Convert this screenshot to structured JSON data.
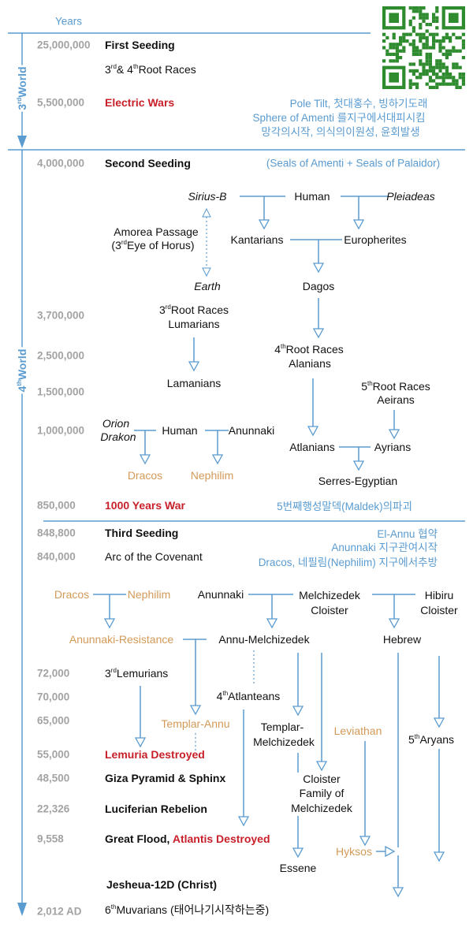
{
  "header": {
    "years_label": "Years"
  },
  "colors": {
    "line": "#5a9bd0",
    "year": "#a3a3a3",
    "red": "#c8202a",
    "orange": "#d39a57",
    "qr": "#2e8b2e"
  },
  "worlds": {
    "third": {
      "num": "3",
      "sup": "rd",
      "label": "World"
    },
    "fourth": {
      "num": "4",
      "sup": "th",
      "label": "World"
    }
  },
  "years": [
    "25,000,000",
    "5,500,000",
    "4,000,000",
    "3,700,000",
    "2,500,000",
    "1,500,000",
    "1,000,000",
    "850,000",
    "848,800",
    "840,000",
    "72,000",
    "70,000",
    "65,000",
    "55,000",
    "48,500",
    "22,326",
    "9,558",
    "2,012 AD"
  ],
  "events": {
    "first_seeding": "First Seeding",
    "root_races": {
      "a": "3",
      "a_sup": "rd",
      "b": "& 4",
      "b_sup": "th",
      "c": "Root Races"
    },
    "electric_wars": "Electric Wars",
    "second_seeding": "Second  Seeding",
    "thousand_years_war": "1000 Years War",
    "third_seeding": "Third Seeding",
    "arc": "Arc of the Covenant",
    "lemurians": {
      "n": "3",
      "sup": "rd",
      "t": "Lemurians"
    },
    "lemuria_destroyed": "Lemuria Destroyed",
    "giza": "Giza Pyramid & Sphinx",
    "luciferian": "Luciferian Rebelion",
    "great_flood": "Great Flood, ",
    "atlantis_destroyed": "Atlantis Destroyed",
    "jesheua": "Jesheua-12D (Christ)",
    "muvarians": {
      "n": "6",
      "sup": "th",
      "t": "Muvarians (태어나기시작하는중)"
    }
  },
  "notes": {
    "electric": [
      "Pole Tilt, 첫대홍수, 빙하기도래",
      "Sphere of Amenti 를지구에서대피시킴",
      "망각의시작, 의식의이원성, 윤회발생"
    ],
    "seals": "(Seals of Amenti + Seals of Palaidor)",
    "maldek": "5번째행성말덱(Maldek)의파괴",
    "third": [
      "El-Annu 협약",
      "Anunnaki 지구관여시작",
      "Dracos, 네필림(Nephilim) 지구에서추방"
    ]
  },
  "fourth_world_diagram": {
    "sirius": "Sirius-B",
    "human": "Human",
    "pleiadeas": "Pleiadeas",
    "kantarians": "Kantarians",
    "europherites": "Europherites",
    "dagos": "Dagos",
    "amorea": [
      "Amorea Passage",
      {
        "open": "(3",
        "sup": "rd",
        "close": "Eye of Horus)"
      }
    ],
    "earth": "Earth",
    "root3": {
      "n": "3",
      "sup": "rd",
      "t": "Root Races",
      "sub": "Lumarians"
    },
    "lamanians": "Lamanians",
    "root4": {
      "n": "4",
      "sup": "th",
      "t": "Root Races",
      "sub": "Alanians"
    },
    "root5": {
      "n": "5",
      "sup": "th",
      "t": "Root Races",
      "sub": "Aeirans"
    },
    "atlanians": "Atlanians",
    "ayrians": "Ayrians",
    "serres": "Serres-Egyptian",
    "orion": "Orion",
    "drakon": "Drakon",
    "human2": "Human",
    "anunnaki": "Anunnaki",
    "dracos": "Dracos",
    "nephilim": "Nephilim"
  },
  "third_seeding_diagram": {
    "dracos": "Dracos",
    "nephilim": "Nephilim",
    "anunnaki": "Anunnaki",
    "melchizedek_cloister": [
      "Melchizedek",
      "Cloister"
    ],
    "hibiru_cloister": [
      "Hibiru",
      "Cloister"
    ],
    "resistance": "Anunnaki-Resistance",
    "annu_melchizedek": "Annu-Melchizedek",
    "hebrew": "Hebrew",
    "atlanteans": {
      "n": "4",
      "sup": "th",
      "t": "Atlanteans"
    },
    "templar_annu": "Templar-Annu",
    "templar_melchizedek": [
      "Templar-",
      "Melchizedek"
    ],
    "leviathan": "Leviathan",
    "aryans": {
      "n": "5",
      "sup": "th",
      "t": "Aryans"
    },
    "cloister_family": [
      "Cloister",
      "Family of",
      "Melchizedek"
    ],
    "hyksos": "Hyksos",
    "essene": "Essene"
  }
}
